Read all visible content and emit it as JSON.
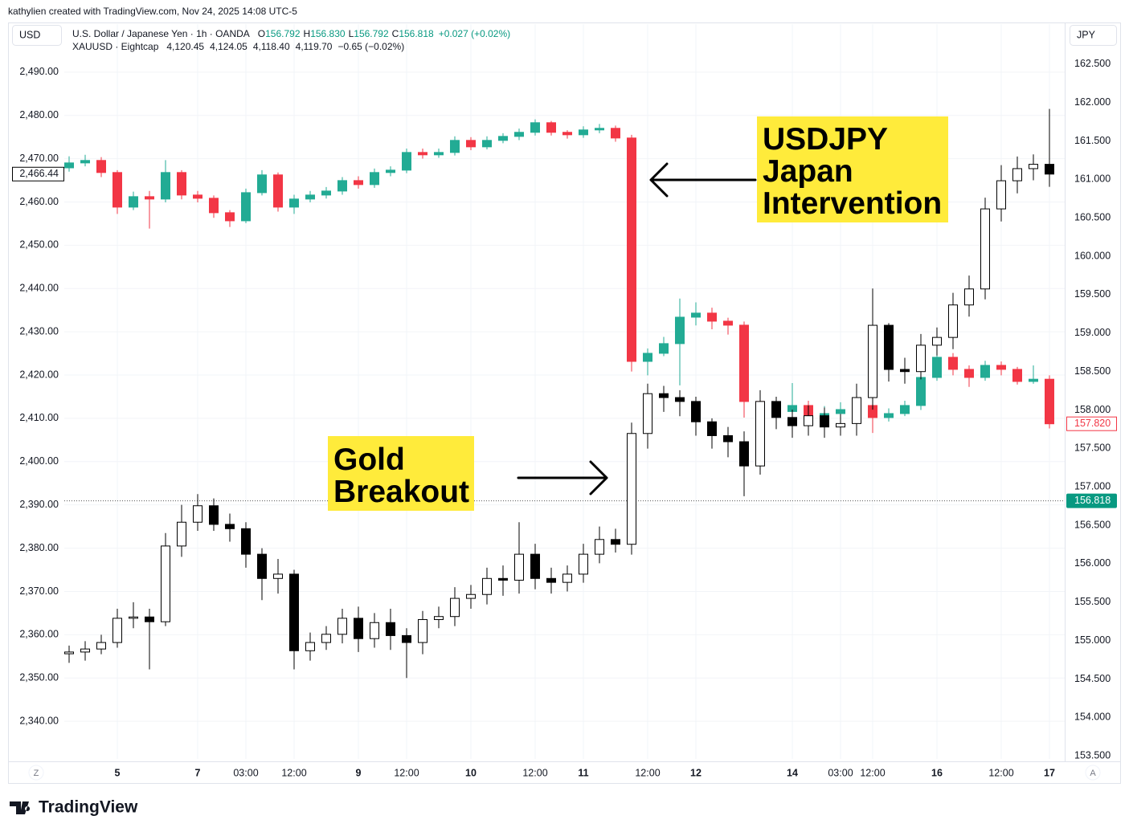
{
  "page": {
    "credit": "kathylien created with TradingView.com, Nov 24, 2025 14:08 UTC-5",
    "logo": "TradingView",
    "currency_left": "USD",
    "currency_right": "JPY",
    "button_left": "Z",
    "button_right": "A"
  },
  "chart_data": {
    "type": "candlestick",
    "categories": [
      null,
      null,
      null,
      "5",
      null,
      null,
      null,
      null,
      "7",
      null,
      null,
      "03:00",
      null,
      null,
      "12:00",
      null,
      null,
      null,
      "9",
      null,
      null,
      "12:00",
      null,
      null,
      null,
      "10",
      null,
      null,
      null,
      "12:00",
      null,
      null,
      "11",
      null,
      null,
      null,
      "12:00",
      null,
      null,
      "12",
      null,
      null,
      null,
      null,
      null,
      "14",
      null,
      null,
      "03:00",
      null,
      "12:00",
      null,
      null,
      null,
      "16",
      null,
      null,
      null,
      "12:00",
      null,
      null,
      "17"
    ],
    "ylim": [
      2331.3,
      2501.1
    ],
    "yticks": [
      {
        "value": 2340,
        "label": "2,340.00"
      },
      {
        "value": 2350,
        "label": "2,350.00"
      },
      {
        "value": 2360,
        "label": "2,360.00"
      },
      {
        "value": 2370,
        "label": "2,370.00"
      },
      {
        "value": 2380,
        "label": "2,380.00"
      },
      {
        "value": 2390,
        "label": "2,390.00"
      },
      {
        "value": 2400,
        "label": "2,400.00"
      },
      {
        "value": 2410,
        "label": "2,410.00"
      },
      {
        "value": 2420,
        "label": "2,420.00"
      },
      {
        "value": 2430,
        "label": "2,430.00"
      },
      {
        "value": 2440,
        "label": "2,440.00"
      },
      {
        "value": 2450,
        "label": "2,450.00"
      },
      {
        "value": 2460,
        "label": "2,460.00"
      },
      {
        "value": 2470,
        "label": "2,470.00"
      },
      {
        "value": 2480,
        "label": "2,480.00"
      },
      {
        "value": 2490,
        "label": "2,490.00"
      }
    ],
    "y2lim": [
      153.46,
      163.02
    ],
    "y2ticks": [
      {
        "value": 153.5,
        "label": "153.500"
      },
      {
        "value": 154,
        "label": "154.000"
      },
      {
        "value": 154.5,
        "label": "154.500"
      },
      {
        "value": 155,
        "label": "155.000"
      },
      {
        "value": 155.5,
        "label": "155.500"
      },
      {
        "value": 156,
        "label": "156.000"
      },
      {
        "value": 156.5,
        "label": "156.500"
      },
      {
        "value": 157,
        "label": "157.000"
      },
      {
        "value": 157.5,
        "label": "157.500"
      },
      {
        "value": 158,
        "label": "158.000"
      },
      {
        "value": 158.5,
        "label": "158.500"
      },
      {
        "value": 159,
        "label": "159.000"
      },
      {
        "value": 159.5,
        "label": "159.500"
      },
      {
        "value": 160,
        "label": "160.000"
      },
      {
        "value": 160.5,
        "label": "160.500"
      },
      {
        "value": 161,
        "label": "161.000"
      },
      {
        "value": 161.5,
        "label": "161.500"
      },
      {
        "value": 162,
        "label": "162.000"
      },
      {
        "value": 162.5,
        "label": "162.500"
      }
    ],
    "grid": true,
    "series": [
      {
        "name": "U.S. Dollar / Japanese Yen · 1h · OANDA",
        "axis": "y2",
        "up_color": "#22ab94",
        "down_color": "#f23645",
        "quote_keys": [
          "O",
          "H",
          "L",
          "C"
        ],
        "quote": [
          "156.792",
          "156.830",
          "156.792",
          "156.818",
          "+0.027 (+0.02%)"
        ],
        "open": [
          161.15,
          161.214,
          161.246,
          161.089,
          160.639,
          160.775,
          160.744,
          161.089,
          160.796,
          160.754,
          160.566,
          160.461,
          160.827,
          161.058,
          160.639,
          160.744,
          160.796,
          160.848,
          160.984,
          160.932,
          161.089,
          161.12,
          161.35,
          161.319,
          161.35,
          161.507,
          161.423,
          161.507,
          161.559,
          161.612,
          161.737,
          161.612,
          161.58,
          161.643,
          161.664,
          161.538,
          158.632,
          158.737,
          158.863,
          159.207,
          159.26,
          159.155,
          159.103,
          158.11,
          157.953,
          157.98,
          158.058,
          157.901,
          157.953,
          158.005,
          158.058,
          157.901,
          157.953,
          158.058,
          158.423,
          158.685,
          158.528,
          158.423,
          158.58,
          158.528,
          158.371,
          158.4
        ],
        "high": [
          161.3,
          161.32,
          161.29,
          161.12,
          160.84,
          160.85,
          161.25,
          161.12,
          160.85,
          160.79,
          160.6,
          160.88,
          161.12,
          161.09,
          160.8,
          160.85,
          160.9,
          161.03,
          161.04,
          161.14,
          161.17,
          161.4,
          161.4,
          161.4,
          161.56,
          161.55,
          161.56,
          161.6,
          161.66,
          161.78,
          161.76,
          161.64,
          161.69,
          161.72,
          161.7,
          161.58,
          158.8,
          158.95,
          159.45,
          159.4,
          159.33,
          159.2,
          159.15,
          158.2,
          158.1,
          158.35,
          158.12,
          158.05,
          158.1,
          158.12,
          158.1,
          158.02,
          158.12,
          158.5,
          158.85,
          158.74,
          158.58,
          158.64,
          158.63,
          158.56,
          158.58,
          158.45
        ],
        "low": [
          161.1,
          161.17,
          161.03,
          160.55,
          160.6,
          160.36,
          160.7,
          160.74,
          160.7,
          160.5,
          160.38,
          160.43,
          160.79,
          160.58,
          160.55,
          160.7,
          160.75,
          160.8,
          160.88,
          160.89,
          161.04,
          161.08,
          161.27,
          161.28,
          161.31,
          161.38,
          161.39,
          161.47,
          161.51,
          161.57,
          161.57,
          161.53,
          161.54,
          161.6,
          161.49,
          158.5,
          158.45,
          158.7,
          158.32,
          159.1,
          159.05,
          158.98,
          157.9,
          157.88,
          157.9,
          157.93,
          157.8,
          157.85,
          157.9,
          157.95,
          157.7,
          157.85,
          157.92,
          158.0,
          158.38,
          158.45,
          158.3,
          158.38,
          158.45,
          158.33,
          158.34,
          157.76
        ],
        "close": [
          161.214,
          161.246,
          161.089,
          160.639,
          160.775,
          160.744,
          161.089,
          160.796,
          160.754,
          160.566,
          160.461,
          160.827,
          161.058,
          160.639,
          160.744,
          160.796,
          160.848,
          160.984,
          160.932,
          161.089,
          161.12,
          161.35,
          161.319,
          161.35,
          161.507,
          161.423,
          161.507,
          161.559,
          161.612,
          161.737,
          161.612,
          161.58,
          161.643,
          161.664,
          161.538,
          158.632,
          158.737,
          158.863,
          159.207,
          159.26,
          159.155,
          159.103,
          158.11,
          157.953,
          157.98,
          158.058,
          157.901,
          157.953,
          158.005,
          158.058,
          157.901,
          157.953,
          158.058,
          158.423,
          158.685,
          158.528,
          158.423,
          158.58,
          158.528,
          158.371,
          158.4,
          157.82
        ],
        "last_label": "157.820"
      },
      {
        "name": "XAUUSD · Eightcap",
        "axis": "y",
        "up_color": "#ffffff",
        "down_color": "#000000",
        "edge_color": "#000000",
        "quote": [
          "4,120.45",
          "4,124.05",
          "4,118.40",
          "4,119.70",
          "−0.65 (−0.02%)"
        ],
        "open": [
          2355.6,
          2356.0,
          2356.7,
          2358.2,
          2363.8,
          2364.1,
          2363.0,
          2380.5,
          2386.0,
          2389.8,
          2385.5,
          2384.5,
          2378.6,
          2373.0,
          2374.0,
          2356.3,
          2358.2,
          2360.1,
          2363.8,
          2359.1,
          2362.8,
          2359.8,
          2358.2,
          2363.5,
          2364.2,
          2368.4,
          2369.3,
          2373.0,
          2372.6,
          2378.6,
          2373.0,
          2372.1,
          2374.0,
          2378.6,
          2382.0,
          2380.9,
          2406.5,
          2415.7,
          2414.8,
          2413.9,
          2409.2,
          2406.0,
          2404.6,
          2399.0,
          2413.9,
          2410.2,
          2408.3,
          2410.6,
          2408.0,
          2408.8,
          2414.8,
          2431.5,
          2421.3,
          2420.8,
          2426.9,
          2428.7,
          2436.2,
          2439.9,
          2458.4,
          2464.9,
          2467.7,
          2468.7
        ],
        "high": [
          2357.5,
          2358.5,
          2360.0,
          2366.0,
          2367.5,
          2366.0,
          2383.5,
          2390.0,
          2392.5,
          2391.5,
          2388.0,
          2386.0,
          2380.0,
          2377.5,
          2375.0,
          2360.5,
          2362.0,
          2366.0,
          2366.5,
          2365.0,
          2366.0,
          2361.5,
          2365.5,
          2366.5,
          2371.0,
          2371.5,
          2375.5,
          2376.0,
          2386.0,
          2381.0,
          2375.5,
          2376.0,
          2381.0,
          2385.0,
          2384.5,
          2409.0,
          2418.0,
          2417.5,
          2416.5,
          2415.0,
          2410.0,
          2408.0,
          2407.0,
          2416.5,
          2415.0,
          2412.0,
          2413.0,
          2412.5,
          2411.0,
          2418.0,
          2440.0,
          2432.0,
          2424.0,
          2429.5,
          2431.0,
          2439.0,
          2443.0,
          2461.0,
          2468.5,
          2470.5,
          2471.0,
          2481.5
        ],
        "low": [
          2353.5,
          2354.0,
          2355.5,
          2357.0,
          2361.5,
          2352.0,
          2362.0,
          2378.0,
          2384.0,
          2384.0,
          2381.5,
          2375.5,
          2368.0,
          2369.5,
          2352.0,
          2354.0,
          2356.5,
          2358.0,
          2356.0,
          2357.0,
          2356.5,
          2350.0,
          2355.5,
          2361.5,
          2362.0,
          2366.0,
          2367.0,
          2369.0,
          2369.5,
          2370.5,
          2369.5,
          2370.0,
          2372.0,
          2376.5,
          2379.0,
          2378.5,
          2403.0,
          2411.5,
          2410.5,
          2406.0,
          2403.0,
          2401.0,
          2392.0,
          2397.0,
          2407.5,
          2405.5,
          2406.0,
          2405.5,
          2406.0,
          2406.0,
          2412.0,
          2418.5,
          2418.0,
          2419.0,
          2424.5,
          2426.0,
          2433.5,
          2437.5,
          2455.5,
          2462.0,
          2465.0,
          2463.5
        ],
        "close": [
          2356.0,
          2356.7,
          2358.2,
          2363.8,
          2364.1,
          2363.0,
          2380.5,
          2386.0,
          2389.8,
          2385.5,
          2384.5,
          2378.6,
          2373.0,
          2374.0,
          2356.3,
          2358.2,
          2360.1,
          2363.8,
          2359.1,
          2362.8,
          2359.8,
          2358.2,
          2363.5,
          2364.2,
          2368.4,
          2369.3,
          2373.0,
          2372.6,
          2378.6,
          2373.0,
          2372.1,
          2374.0,
          2378.6,
          2382.0,
          2380.9,
          2406.5,
          2415.7,
          2414.8,
          2413.9,
          2409.2,
          2406.0,
          2404.6,
          2399.0,
          2413.9,
          2410.2,
          2408.3,
          2410.6,
          2408.0,
          2408.8,
          2414.8,
          2431.5,
          2421.3,
          2420.8,
          2426.9,
          2428.7,
          2436.2,
          2439.9,
          2458.4,
          2464.9,
          2467.7,
          2468.7,
          2466.44
        ],
        "last_label": "2,466.44"
      }
    ],
    "price_line": {
      "value": 156.818,
      "label": "156.818",
      "axis": "y2",
      "color": "#089981"
    },
    "annotations": [
      {
        "lines": [
          "USDJPY",
          "Japan",
          "Intervention"
        ]
      },
      {
        "lines": [
          "Gold",
          "Breakout"
        ]
      }
    ]
  }
}
